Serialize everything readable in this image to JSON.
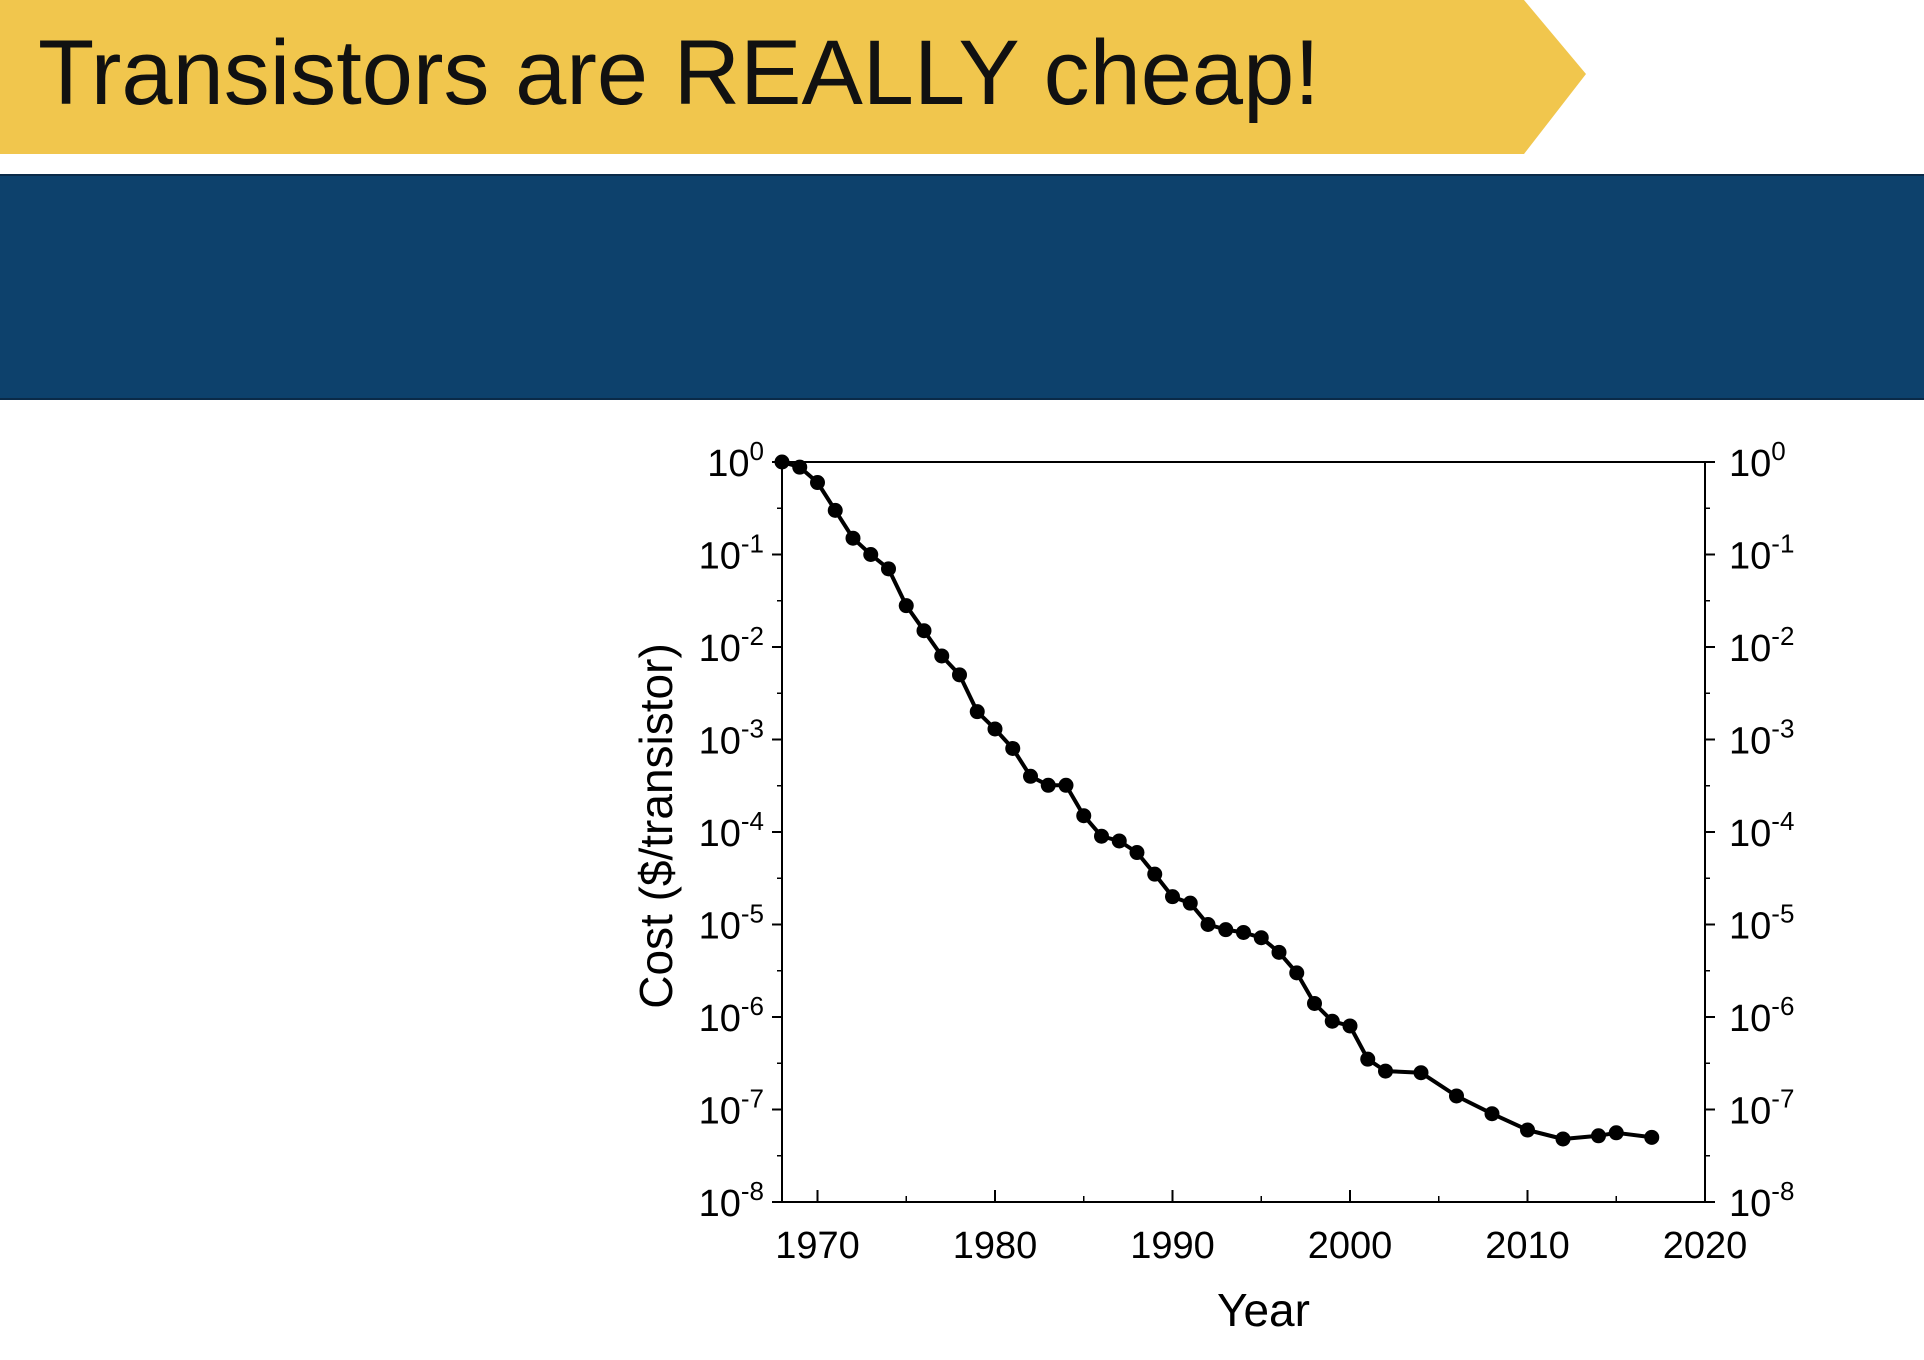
{
  "slide": {
    "title": "Transistors are REALLY cheap!"
  },
  "colors": {
    "banner_yellow": "#f1c64d",
    "band_blue": "#0d416c",
    "line": "#000000"
  },
  "chart_data": {
    "type": "line",
    "xlabel": "Year",
    "ylabel": "Cost ($/transistor)",
    "y_scale": "log",
    "xlim": [
      1968,
      2020
    ],
    "ylim": [
      1e-08,
      1
    ],
    "x_ticks": [
      "1970",
      "1980",
      "1990",
      "2000",
      "2010",
      "2020"
    ],
    "y_ticks": [
      {
        "base": "10",
        "exp": "0"
      },
      {
        "base": "10",
        "exp": "-1"
      },
      {
        "base": "10",
        "exp": "-2"
      },
      {
        "base": "10",
        "exp": "-3"
      },
      {
        "base": "10",
        "exp": "-4"
      },
      {
        "base": "10",
        "exp": "-5"
      },
      {
        "base": "10",
        "exp": "-6"
      },
      {
        "base": "10",
        "exp": "-7"
      },
      {
        "base": "10",
        "exp": "-8"
      }
    ],
    "right_axis_mirrors_left": true,
    "grid": false,
    "markers": "filled-circle",
    "series": [
      {
        "x": [
          1968,
          1969,
          1970,
          1971,
          1972,
          1973,
          1974,
          1975,
          1976,
          1977,
          1978,
          1979,
          1980,
          1981,
          1982,
          1983,
          1984,
          1985,
          1986,
          1987,
          1988,
          1989,
          1990,
          1991,
          1992,
          1993,
          1994,
          1995,
          1996,
          1997,
          1998,
          1999,
          2000,
          2001,
          2002,
          2004,
          2006,
          2008,
          2010,
          2012,
          2014,
          2015,
          2017
        ],
        "y": [
          1.0,
          0.88,
          0.6,
          0.3,
          0.15,
          0.1,
          0.07,
          0.028,
          0.015,
          0.008,
          0.005,
          0.002,
          0.0013,
          0.0008,
          0.0004,
          0.00032,
          0.00032,
          0.00015,
          9e-05,
          8e-05,
          6e-05,
          3.5e-05,
          2e-05,
          1.7e-05,
          1e-05,
          8.8e-06,
          8.2e-06,
          7.2e-06,
          5e-06,
          3e-06,
          1.4e-06,
          9e-07,
          8e-07,
          3.5e-07,
          2.6e-07,
          2.5e-07,
          1.4e-07,
          9e-08,
          6e-08,
          4.8e-08,
          5.2e-08,
          5.6e-08,
          5e-08
        ]
      }
    ]
  }
}
